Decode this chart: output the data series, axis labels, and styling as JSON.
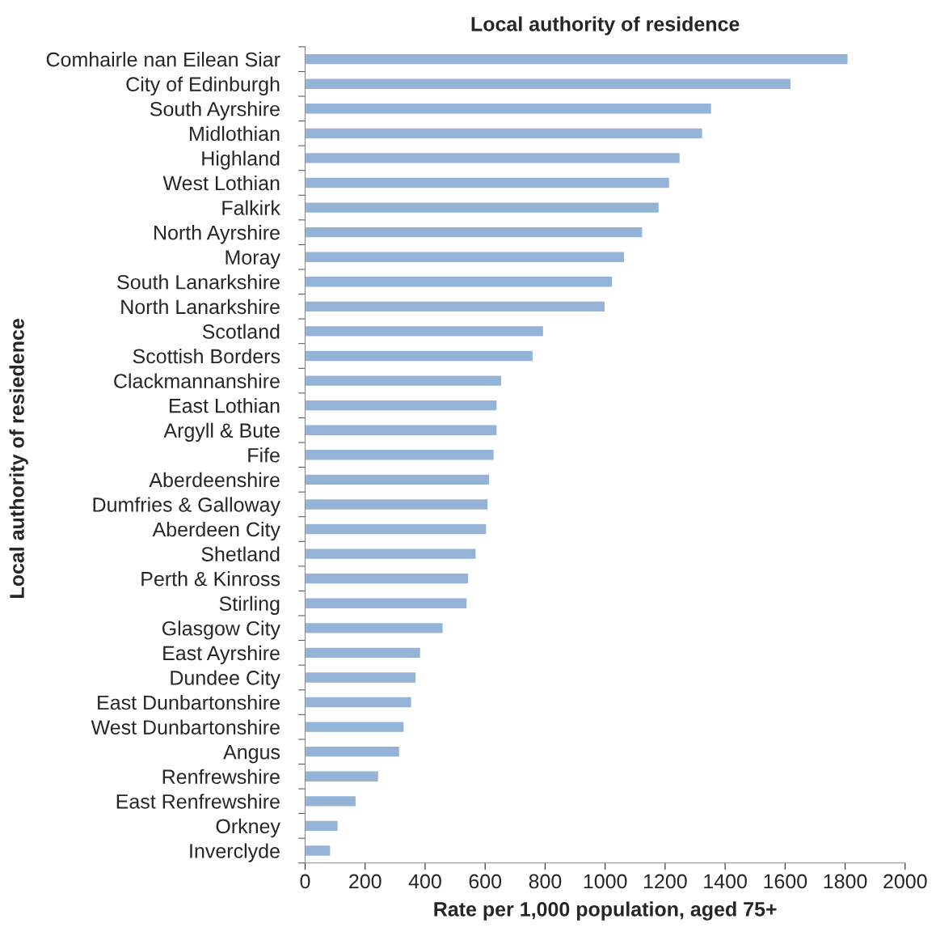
{
  "chart_data": {
    "type": "bar",
    "orientation": "horizontal",
    "title": "Local authority of residence",
    "xlabel": "Rate per 1,000 population, aged 75+",
    "ylabel": "Local authority of resiedence",
    "categories": [
      "Comhairle nan Eilean Siar",
      "City of Edinburgh",
      "South Ayrshire",
      "Midlothian",
      "Highland",
      "West Lothian",
      "Falkirk",
      "North Ayrshire",
      "Moray",
      "South Lanarkshire",
      "North Lanarkshire",
      "Scotland",
      "Scottish Borders",
      "Clackmannanshire",
      "East Lothian",
      "Argyll & Bute",
      "Fife",
      "Aberdeenshire",
      "Dumfries & Galloway",
      "Aberdeen City",
      "Shetland",
      "Perth & Kinross",
      "Stirling",
      "Glasgow City",
      "East Ayrshire",
      "Dundee City",
      "East Dunbartonshire",
      "West Dunbartonshire",
      "Angus",
      "Renfrewshire",
      "East Renfrewshire",
      "Orkney",
      "Inverclyde"
    ],
    "values": [
      1810,
      1620,
      1355,
      1325,
      1250,
      1215,
      1180,
      1125,
      1065,
      1025,
      1000,
      795,
      760,
      655,
      640,
      640,
      630,
      615,
      610,
      605,
      570,
      545,
      540,
      460,
      385,
      370,
      355,
      330,
      315,
      245,
      170,
      110,
      85
    ],
    "color": "#95b3d7",
    "xlim": [
      0,
      2000
    ],
    "xticks": [
      0,
      200,
      400,
      600,
      800,
      1000,
      1200,
      1400,
      1600,
      1800,
      2000
    ],
    "grid": false,
    "legend": false
  }
}
